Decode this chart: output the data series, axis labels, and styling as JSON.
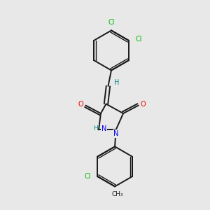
{
  "background_color": "#e8e8e8",
  "bond_color": "#1a1a1a",
  "N_color": "#0000ee",
  "O_color": "#ee0000",
  "Cl_color": "#00bb00",
  "H_color": "#008888",
  "figsize": [
    3.0,
    3.0
  ],
  "dpi": 100,
  "xlim": [
    0,
    10
  ],
  "ylim": [
    0,
    10
  ]
}
